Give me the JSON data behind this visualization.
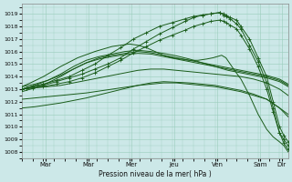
{
  "xlabel": "Pression niveau de la mer( hPa )",
  "background_color": "#cce8e8",
  "grid_color": "#99ccbb",
  "line_color": "#1a5c1a",
  "ylim": [
    1007.5,
    1019.8
  ],
  "yticks": [
    1008,
    1009,
    1010,
    1011,
    1012,
    1013,
    1014,
    1015,
    1016,
    1017,
    1018,
    1019
  ],
  "xlim": [
    0,
    6.2
  ],
  "xtick_pos": [
    0.55,
    1.55,
    2.55,
    3.55,
    4.55,
    5.55,
    6.05
  ],
  "xtick_labels": [
    "Mar",
    "Mar",
    "Mer",
    "Jeu",
    "Ven",
    "Sam",
    "Dir"
  ],
  "series_with_markers": [
    [
      0.0,
      0.1,
      0.25,
      0.5,
      0.8,
      1.1,
      1.4,
      1.7,
      2.0,
      2.3,
      2.6,
      2.9,
      3.2,
      3.5,
      3.8,
      4.0,
      4.2,
      4.4,
      4.6,
      4.7,
      4.75,
      4.85,
      5.0,
      5.1,
      5.3,
      5.5,
      5.7,
      5.85,
      6.0,
      6.1,
      6.2
    ],
    [
      1013.0,
      1013.1,
      1013.2,
      1013.3,
      1013.6,
      1013.9,
      1014.2,
      1014.6,
      1015.0,
      1015.5,
      1016.2,
      1016.8,
      1017.4,
      1017.9,
      1018.4,
      1018.7,
      1018.9,
      1019.0,
      1019.1,
      1018.9,
      1018.8,
      1018.6,
      1018.2,
      1017.8,
      1016.5,
      1015.2,
      1013.5,
      1011.5,
      1009.5,
      1008.7,
      1008.2
    ],
    [
      1013.0,
      1013.1,
      1013.25,
      1013.4,
      1013.7,
      1014.0,
      1014.5,
      1015.0,
      1015.7,
      1016.3,
      1017.0,
      1017.5,
      1018.0,
      1018.3,
      1018.6,
      1018.8,
      1018.9,
      1019.0,
      1019.1,
      1019.0,
      1018.9,
      1018.7,
      1018.5,
      1018.0,
      1017.0,
      1015.5,
      1014.0,
      1012.0,
      1010.0,
      1009.3,
      1008.8
    ],
    [
      1013.0,
      1013.05,
      1013.1,
      1013.2,
      1013.4,
      1013.6,
      1013.9,
      1014.3,
      1014.8,
      1015.3,
      1015.9,
      1016.4,
      1016.9,
      1017.3,
      1017.7,
      1018.0,
      1018.2,
      1018.4,
      1018.5,
      1018.4,
      1018.3,
      1018.1,
      1017.8,
      1017.3,
      1016.2,
      1014.8,
      1013.0,
      1011.2,
      1009.5,
      1009.0,
      1008.5
    ]
  ],
  "series_plain": [
    [
      0.0,
      0.3,
      0.6,
      0.9,
      1.2,
      1.5,
      1.8,
      2.1,
      2.4,
      2.7,
      3.0,
      3.3,
      3.6,
      3.9,
      4.2,
      4.5,
      4.8,
      5.1,
      5.4,
      5.7,
      6.0,
      6.2
    ],
    [
      1013.0,
      1013.1,
      1013.2,
      1013.3,
      1013.5,
      1013.7,
      1013.9,
      1014.1,
      1014.3,
      1014.5,
      1014.6,
      1014.6,
      1014.5,
      1014.4,
      1014.3,
      1014.2,
      1014.1,
      1014.0,
      1013.8,
      1013.5,
      1013.0,
      1012.5
    ],
    [
      1012.2,
      1012.3,
      1012.4,
      1012.5,
      1012.6,
      1012.7,
      1012.85,
      1013.0,
      1013.15,
      1013.3,
      1013.4,
      1013.5,
      1013.5,
      1013.4,
      1013.3,
      1013.2,
      1013.0,
      1012.8,
      1012.5,
      1012.2,
      1011.5,
      1011.0
    ],
    [
      1011.5,
      1011.6,
      1011.75,
      1011.9,
      1012.1,
      1012.3,
      1012.55,
      1012.8,
      1013.05,
      1013.3,
      1013.5,
      1013.6,
      1013.55,
      1013.5,
      1013.4,
      1013.3,
      1013.1,
      1012.9,
      1012.6,
      1012.2,
      1011.5,
      1010.8
    ],
    [
      1013.0,
      1013.3,
      1013.7,
      1014.2,
      1014.8,
      1015.3,
      1015.6,
      1015.8,
      1016.0,
      1016.1,
      1016.0,
      1015.85,
      1015.65,
      1015.4,
      1015.1,
      1014.8,
      1014.5,
      1014.3,
      1014.1,
      1013.9,
      1013.6,
      1013.2
    ],
    [
      1013.2,
      1013.4,
      1013.7,
      1014.1,
      1014.6,
      1015.1,
      1015.5,
      1015.7,
      1015.85,
      1016.0,
      1015.9,
      1015.7,
      1015.5,
      1015.3,
      1015.1,
      1014.9,
      1014.7,
      1014.5,
      1014.3,
      1014.1,
      1013.8,
      1013.4
    ],
    [
      1012.8,
      1013.1,
      1013.5,
      1014.0,
      1014.6,
      1015.1,
      1015.4,
      1015.6,
      1015.75,
      1015.85,
      1015.8,
      1015.6,
      1015.4,
      1015.2,
      1015.0,
      1014.8,
      1014.6,
      1014.4,
      1014.2,
      1014.0,
      1013.7,
      1013.3
    ]
  ],
  "special_series": {
    "x": [
      0.0,
      0.2,
      0.5,
      0.9,
      1.3,
      1.7,
      2.1,
      2.5,
      2.7,
      2.9,
      3.1,
      3.3,
      3.5,
      3.7,
      3.9,
      4.1,
      4.3,
      4.45,
      4.55,
      4.65,
      4.75,
      4.85,
      4.95,
      5.1,
      5.3,
      5.5,
      5.7,
      5.85,
      6.0,
      6.1,
      6.2
    ],
    "y": [
      1013.2,
      1013.5,
      1014.0,
      1014.8,
      1015.5,
      1016.0,
      1016.4,
      1016.6,
      1016.5,
      1016.3,
      1016.0,
      1015.7,
      1015.5,
      1015.4,
      1015.3,
      1015.3,
      1015.4,
      1015.5,
      1015.6,
      1015.7,
      1015.5,
      1015.0,
      1014.5,
      1013.8,
      1012.5,
      1011.0,
      1009.8,
      1009.2,
      1008.8,
      1008.5,
      1008.0
    ]
  }
}
